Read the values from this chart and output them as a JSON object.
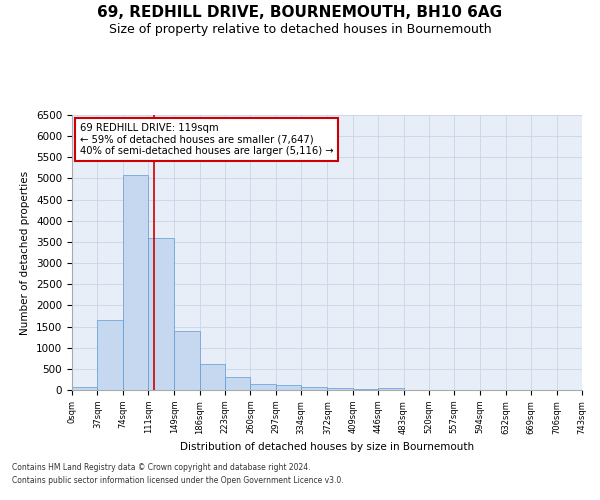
{
  "title": "69, REDHILL DRIVE, BOURNEMOUTH, BH10 6AG",
  "subtitle": "Size of property relative to detached houses in Bournemouth",
  "xlabel": "Distribution of detached houses by size in Bournemouth",
  "ylabel": "Number of detached properties",
  "footer1": "Contains HM Land Registry data © Crown copyright and database right 2024.",
  "footer2": "Contains public sector information licensed under the Open Government Licence v3.0.",
  "bin_edges": [
    0,
    37,
    74,
    111,
    149,
    186,
    223,
    260,
    297,
    334,
    372,
    409,
    446,
    483,
    520,
    557,
    594,
    632,
    669,
    706,
    743
  ],
  "bar_heights": [
    75,
    1650,
    5075,
    3600,
    1400,
    625,
    300,
    150,
    110,
    75,
    50,
    25,
    50,
    10,
    10,
    5,
    5,
    5,
    5,
    5
  ],
  "bar_color": "#c5d8f0",
  "bar_edge_color": "#5b9bd5",
  "highlight_x": 119,
  "annotation_text": "69 REDHILL DRIVE: 119sqm\n← 59% of detached houses are smaller (7,647)\n40% of semi-detached houses are larger (5,116) →",
  "annotation_box_color": "#ffffff",
  "annotation_border_color": "#cc0000",
  "vline_color": "#cc0000",
  "ylim": [
    0,
    6500
  ],
  "xlim": [
    0,
    743
  ],
  "grid_color": "#c8d4e8",
  "title_fontsize": 11,
  "subtitle_fontsize": 9,
  "tick_labels": [
    "0sqm",
    "37sqm",
    "74sqm",
    "111sqm",
    "149sqm",
    "186sqm",
    "223sqm",
    "260sqm",
    "297sqm",
    "334sqm",
    "372sqm",
    "409sqm",
    "446sqm",
    "483sqm",
    "520sqm",
    "557sqm",
    "594sqm",
    "632sqm",
    "669sqm",
    "706sqm",
    "743sqm"
  ]
}
